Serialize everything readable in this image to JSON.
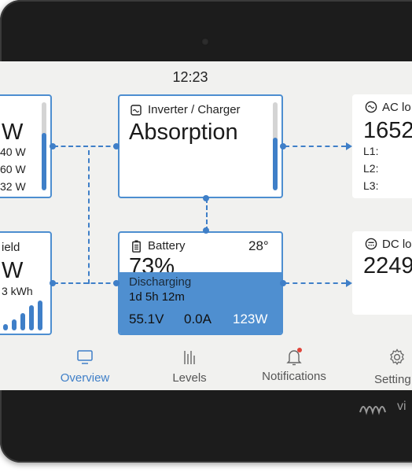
{
  "header": {
    "time": "12:23"
  },
  "pv_charger": {
    "value": "W",
    "rows": [
      "40 W",
      "60 W",
      "32 W"
    ],
    "level": 0.7
  },
  "solar_yield": {
    "title": "ield",
    "value": "W",
    "energy": "3 kWh",
    "bars": [
      0.2,
      0.35,
      0.5,
      0.75,
      0.9
    ]
  },
  "inverter_charger": {
    "title": "Inverter / Charger",
    "state": "Absorption",
    "level": 0.6
  },
  "battery": {
    "title": "Battery",
    "temperature": "28°",
    "soc": "73%",
    "status": "Discharging",
    "time_remaining": "1d 5h 12m",
    "voltage": "55.1V",
    "current": "0.0A",
    "power": "123W"
  },
  "ac_loads": {
    "title": "AC lo",
    "value": "1652",
    "lines": [
      "L1:",
      "L2:",
      "L3:"
    ]
  },
  "dc_loads": {
    "title": "DC lo",
    "value": "2249"
  },
  "nav": {
    "items": [
      {
        "label": "Overview",
        "active": true
      },
      {
        "label": "Levels"
      },
      {
        "label": "Notifications"
      },
      {
        "label": "Setting"
      }
    ]
  },
  "brand": {
    "text": "vi"
  },
  "colors": {
    "accent": "#3f7fc8",
    "notification_dot": "#e0453a"
  }
}
